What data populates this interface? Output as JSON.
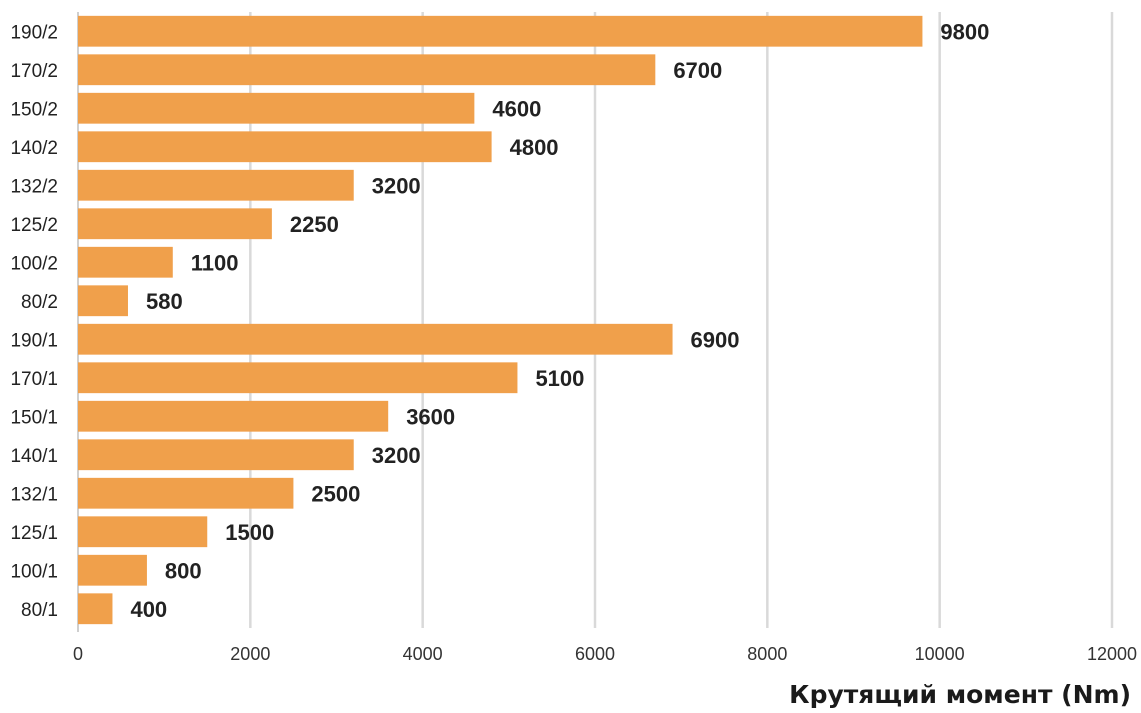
{
  "chart_data": {
    "type": "bar",
    "orientation": "horizontal",
    "categories": [
      "190/2",
      "170/2",
      "150/2",
      "140/2",
      "132/2",
      "125/2",
      "100/2",
      "80/2",
      "190/1",
      "170/1",
      "150/1",
      "140/1",
      "132/1",
      "125/1",
      "100/1",
      "80/1"
    ],
    "values": [
      9800,
      6700,
      4600,
      4800,
      3200,
      2250,
      1100,
      580,
      6900,
      5100,
      3600,
      3200,
      2500,
      1500,
      800,
      400
    ],
    "data_labels": [
      "9800",
      "6700",
      "4600",
      "4800",
      "3200",
      "2250",
      "1100",
      "580",
      "6900",
      "5100",
      "3600",
      "3200",
      "2500",
      "1500",
      "800",
      "400"
    ],
    "x_ticks": [
      "0",
      "2000",
      "4000",
      "6000",
      "8000",
      "10000",
      "12000"
    ],
    "xlim": [
      0,
      12000
    ],
    "xlabel": "Крутящий момент (Nm)",
    "ylabel": "",
    "title": "",
    "grid": "vertical",
    "legend": "none",
    "bar_color": "#f0a04b",
    "grid_color": "#d9d9d9",
    "axis_color": "#bfbfbf"
  }
}
